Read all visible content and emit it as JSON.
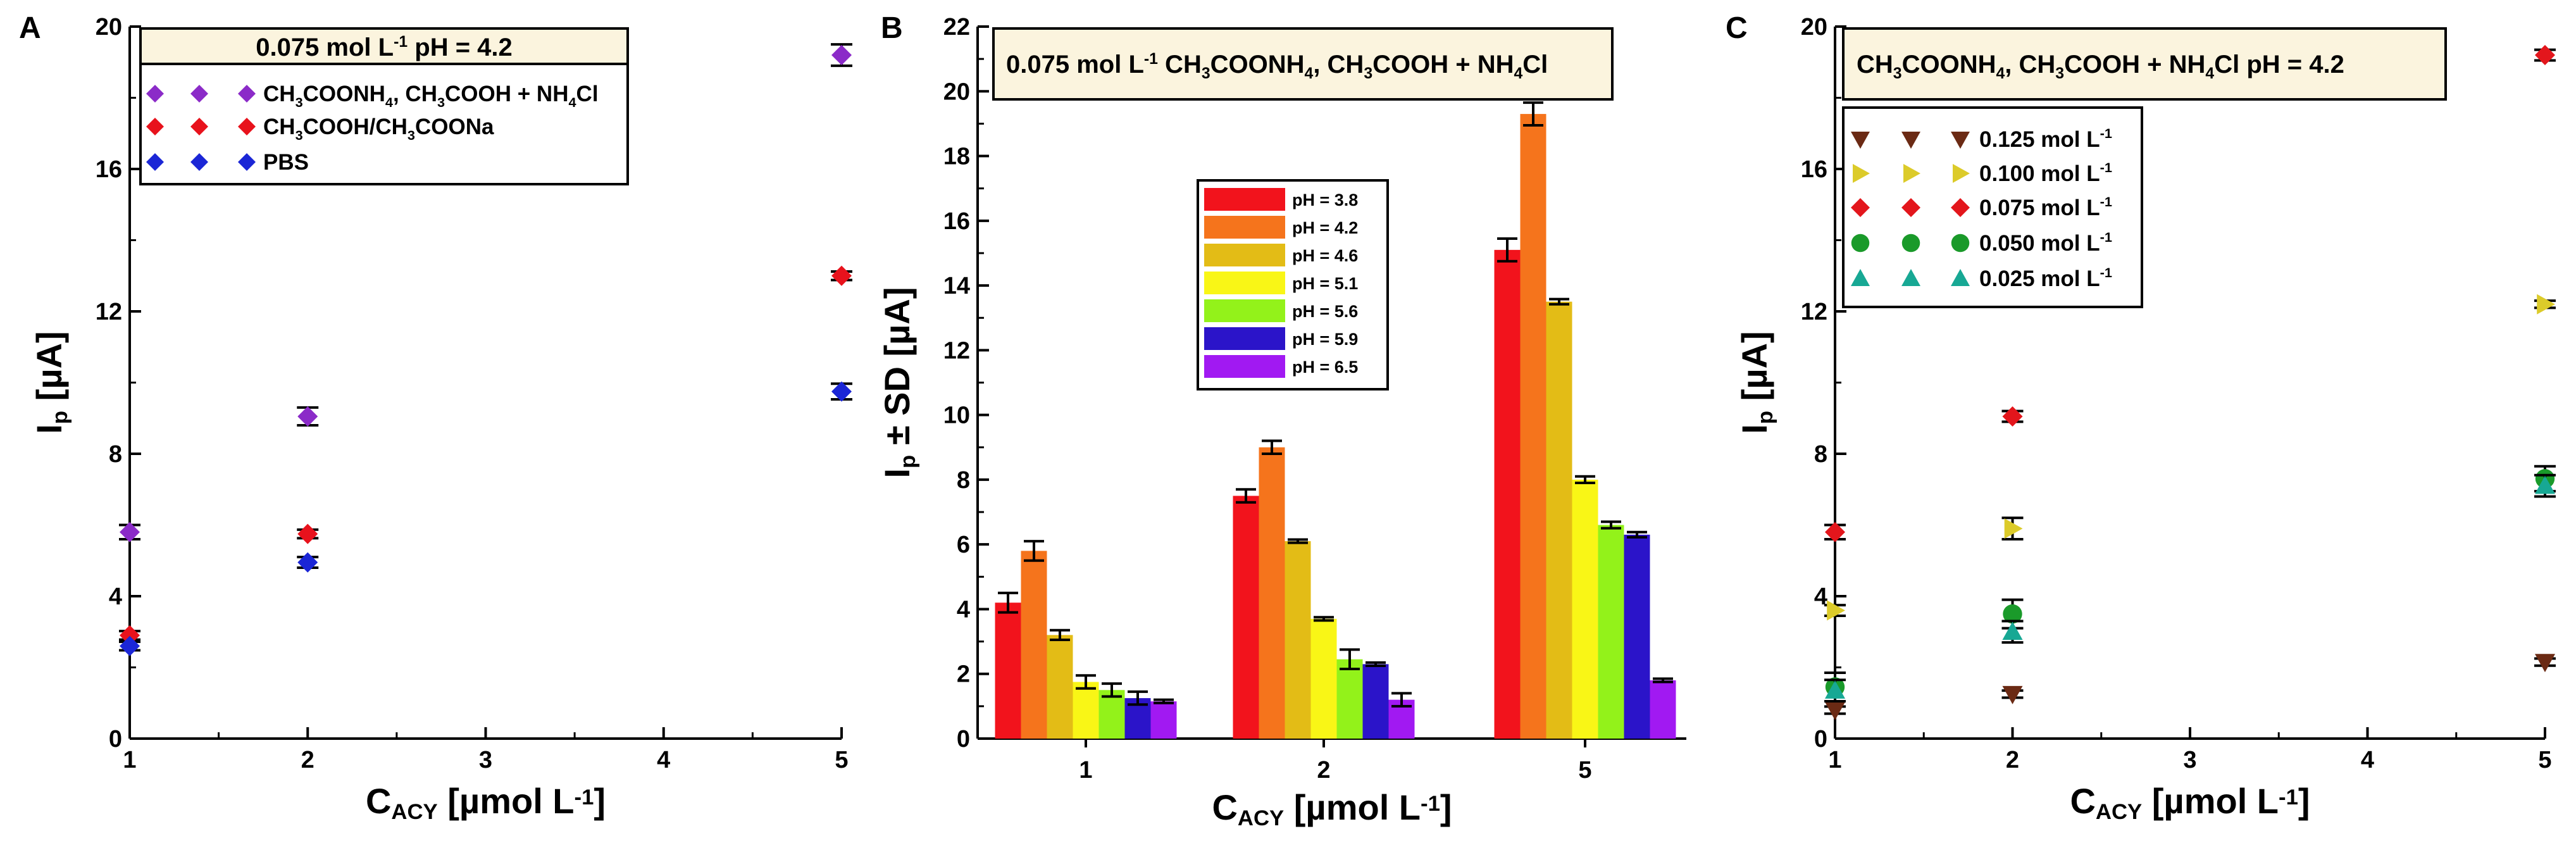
{
  "chart_data": [
    {
      "type": "scatter",
      "panel": "A",
      "title": "0.075 mol L-1 pH = 4.2",
      "title_parts": [
        "0.075 mol L",
        "-1",
        " pH = 4.2"
      ],
      "xlabel_main": "C",
      "xlabel_sub": "ACY",
      "xlabel_unit": " [µmol L-1]",
      "ylabel_main": "I",
      "ylabel_sub": "p",
      "ylabel_unit": " [µA]",
      "xlim": [
        1,
        5
      ],
      "ylim": [
        0,
        20
      ],
      "xticks": [
        1,
        2,
        3,
        4,
        5
      ],
      "xtick_labels": [
        "1",
        "2",
        "3",
        "4",
        "5"
      ],
      "yticks": [
        0,
        4,
        8,
        12,
        16,
        20
      ],
      "ytick_labels": [
        "0",
        "4",
        "8",
        "12",
        "16",
        "20"
      ],
      "grid": false,
      "legend_position": "top",
      "series": [
        {
          "name": "CH3COONH4, CH3COOH + NH4Cl",
          "label_parts": [
            [
              "CH",
              "n"
            ],
            [
              "3",
              "s"
            ],
            [
              "COONH",
              "n"
            ],
            [
              "4",
              "s"
            ],
            [
              ", CH",
              "n"
            ],
            [
              "3",
              "s"
            ],
            [
              "COOH + NH",
              "n"
            ],
            [
              "4",
              "s"
            ],
            [
              "Cl",
              "n"
            ]
          ],
          "marker": "diamond",
          "color": "#8B2BC8",
          "x": [
            1,
            2,
            5
          ],
          "y": [
            5.8,
            9.05,
            19.2
          ],
          "err": [
            0.2,
            0.25,
            0.3
          ]
        },
        {
          "name": "CH3COOH/CH3COONa",
          "label_parts": [
            [
              "CH",
              "n"
            ],
            [
              "3",
              "s"
            ],
            [
              "COOH/CH",
              "n"
            ],
            [
              "3",
              "s"
            ],
            [
              "COONa",
              "n"
            ]
          ],
          "marker": "diamond",
          "color": "#E8121C",
          "x": [
            1,
            2,
            5
          ],
          "y": [
            2.9,
            5.75,
            13.0
          ],
          "err": [
            0.12,
            0.12,
            0.12
          ]
        },
        {
          "name": "PBS",
          "label_parts": [
            [
              "PBS",
              "n"
            ]
          ],
          "marker": "diamond",
          "color": "#1B26D6",
          "x": [
            1,
            2,
            5
          ],
          "y": [
            2.6,
            4.95,
            9.75
          ],
          "err": [
            0.12,
            0.15,
            0.22
          ]
        }
      ]
    },
    {
      "type": "bar",
      "panel": "B",
      "title": "0.075 mol L-1 CH3COONH4, CH3COOH + NH4Cl",
      "title_parts": [
        [
          "0.075 mol L",
          "n"
        ],
        [
          "-1",
          "p"
        ],
        [
          " CH",
          "n"
        ],
        [
          "3",
          "s"
        ],
        [
          "COONH",
          "n"
        ],
        [
          "4",
          "s"
        ],
        [
          ", CH",
          "n"
        ],
        [
          "3",
          "s"
        ],
        [
          "COOH + NH",
          "n"
        ],
        [
          "4",
          "s"
        ],
        [
          "Cl",
          "n"
        ]
      ],
      "xlabel_main": "C",
      "xlabel_sub": "ACY",
      "xlabel_unit": " [µmol L-1]",
      "ylabel_main": "I",
      "ylabel_sub": "p",
      "ylabel_unit": " ± SD [µA]",
      "categories": [
        "1",
        "2",
        "5"
      ],
      "ylim": [
        0,
        22
      ],
      "yticks": [
        0,
        2,
        4,
        6,
        8,
        10,
        12,
        14,
        16,
        18,
        20,
        22
      ],
      "ytick_labels": [
        "0",
        "2",
        "4",
        "6",
        "8",
        "10",
        "12",
        "14",
        "16",
        "18",
        "20",
        "22"
      ],
      "grid": false,
      "legend_position": "center",
      "series": [
        {
          "name": "pH = 3.8",
          "color": "#F2131C",
          "values": [
            4.2,
            7.5,
            15.1
          ],
          "err": [
            0.3,
            0.2,
            0.35
          ]
        },
        {
          "name": "pH = 4.2",
          "color": "#F5741C",
          "values": [
            5.8,
            9.0,
            19.3
          ],
          "err": [
            0.3,
            0.2,
            0.35
          ]
        },
        {
          "name": "pH = 4.6",
          "color": "#E3BC16",
          "values": [
            3.2,
            6.1,
            13.5
          ],
          "err": [
            0.15,
            0.05,
            0.08
          ]
        },
        {
          "name": "pH = 5.1",
          "color": "#F9F616",
          "values": [
            1.75,
            3.7,
            8.0
          ],
          "err": [
            0.2,
            0.05,
            0.1
          ]
        },
        {
          "name": "pH = 5.6",
          "color": "#93F21A",
          "values": [
            1.5,
            2.45,
            6.6
          ],
          "err": [
            0.2,
            0.3,
            0.1
          ]
        },
        {
          "name": "pH = 5.9",
          "color": "#2B14C9",
          "values": [
            1.25,
            2.3,
            6.3
          ],
          "err": [
            0.2,
            0.05,
            0.08
          ]
        },
        {
          "name": "pH = 6.5",
          "color": "#A119F2",
          "values": [
            1.15,
            1.2,
            1.8
          ],
          "err": [
            0.05,
            0.2,
            0.05
          ]
        }
      ]
    },
    {
      "type": "scatter",
      "panel": "C",
      "title": "CH3COONH4, CH3COOH + NH4Cl pH = 4.2",
      "title_parts": [
        [
          "CH",
          "n"
        ],
        [
          "3",
          "s"
        ],
        [
          "COONH",
          "n"
        ],
        [
          "4",
          "s"
        ],
        [
          ", CH",
          "n"
        ],
        [
          "3",
          "s"
        ],
        [
          "COOH + NH",
          "n"
        ],
        [
          "4",
          "s"
        ],
        [
          "Cl pH = 4.2",
          "n"
        ]
      ],
      "xlabel_main": "C",
      "xlabel_sub": "ACY",
      "xlabel_unit": " [µmol L-1]",
      "ylabel_main": "I",
      "ylabel_sub": "p",
      "ylabel_unit": " [µA]",
      "xlim": [
        1,
        5
      ],
      "ylim": [
        0,
        20
      ],
      "xticks": [
        1,
        2,
        3,
        4,
        5
      ],
      "xtick_labels": [
        "1",
        "2",
        "3",
        "4",
        "5"
      ],
      "yticks": [
        0,
        4,
        8,
        12,
        16,
        20
      ],
      "ytick_labels": [
        "0",
        "4",
        "8",
        "12",
        "16",
        "20"
      ],
      "grid": false,
      "legend_position": "top-left",
      "series": [
        {
          "name": "0.125 mol L-1",
          "label_main": "0.125 mol L",
          "label_sup": "-1",
          "marker": "triangle-down",
          "color": "#6B2A14",
          "x": [
            1,
            2,
            5
          ],
          "y": [
            0.8,
            1.25,
            2.15
          ],
          "err": [
            0.1,
            0.1,
            0.1
          ]
        },
        {
          "name": "0.100 mol L-1",
          "label_main": "0.100 mol L",
          "label_sup": "-1",
          "marker": "triangle-right",
          "color": "#DCCB2A",
          "x": [
            1,
            2,
            5
          ],
          "y": [
            3.6,
            5.9,
            12.2
          ],
          "err": [
            0.15,
            0.3,
            0.1
          ]
        },
        {
          "name": "0.075 mol L-1",
          "label_main": "0.075 mol L",
          "label_sup": "-1",
          "marker": "diamond",
          "color": "#E3161C",
          "x": [
            1,
            2,
            5
          ],
          "y": [
            5.8,
            9.05,
            19.2
          ],
          "err": [
            0.2,
            0.15,
            0.15
          ]
        },
        {
          "name": "0.050 mol L-1",
          "label_main": "0.050 mol L",
          "label_sup": "-1",
          "marker": "circle",
          "color": "#1A9A2A",
          "x": [
            1,
            2,
            5
          ],
          "y": [
            1.45,
            3.5,
            7.3
          ],
          "err": [
            0.4,
            0.4,
            0.35
          ]
        },
        {
          "name": "0.025 mol L-1",
          "label_main": "0.025 mol L",
          "label_sup": "-1",
          "marker": "triangle-up",
          "color": "#17A894",
          "x": [
            1,
            2,
            5
          ],
          "y": [
            1.35,
            3.0,
            7.1
          ],
          "err": [
            0.3,
            0.3,
            0.3
          ]
        }
      ]
    }
  ]
}
